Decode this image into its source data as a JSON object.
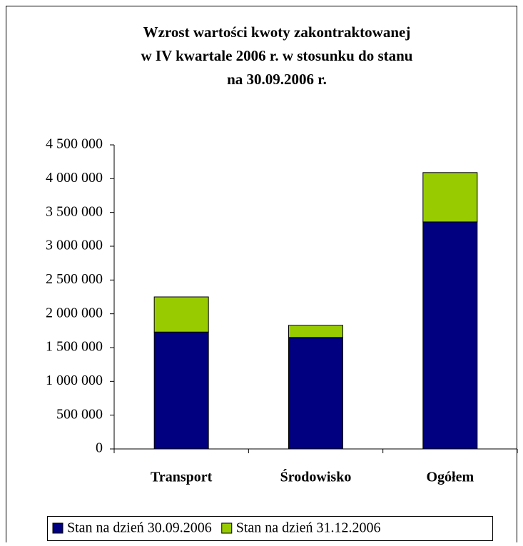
{
  "chart_data": {
    "type": "stacked_bar",
    "title": [
      "Wzrost wartości kwoty zakontraktowanej",
      "w IV kwartale 2006 r. w stosunku do stanu",
      "na 30.09.2006 r."
    ],
    "categories": [
      "Transport",
      "Środowisko",
      "Ogółem"
    ],
    "series": [
      {
        "name": "Stan na dzień 30.09.2006",
        "color": "#000080",
        "values": [
          1730000,
          1650000,
          3360000
        ]
      },
      {
        "name": "Stan na dzień 31.12.2006",
        "color": "#99cc00",
        "values": [
          520000,
          180000,
          730000
        ]
      }
    ],
    "ylim": [
      0,
      4500000
    ],
    "yticks": [
      0,
      {
        "value": 500000,
        "label": "500 000"
      },
      {
        "value": 1000000,
        "label": "1 000 000"
      },
      {
        "value": 1500000,
        "label": "1 500 000"
      },
      {
        "value": 2000000,
        "label": "2 000 000"
      },
      {
        "value": 2500000,
        "label": "2 500 000"
      },
      {
        "value": 3000000,
        "label": "3 000 000"
      },
      {
        "value": 3500000,
        "label": "3 500 000"
      },
      {
        "value": 4000000,
        "label": "4 000 000"
      },
      {
        "value": 4500000,
        "label": "4 500 000"
      }
    ],
    "legend": "bottom"
  }
}
